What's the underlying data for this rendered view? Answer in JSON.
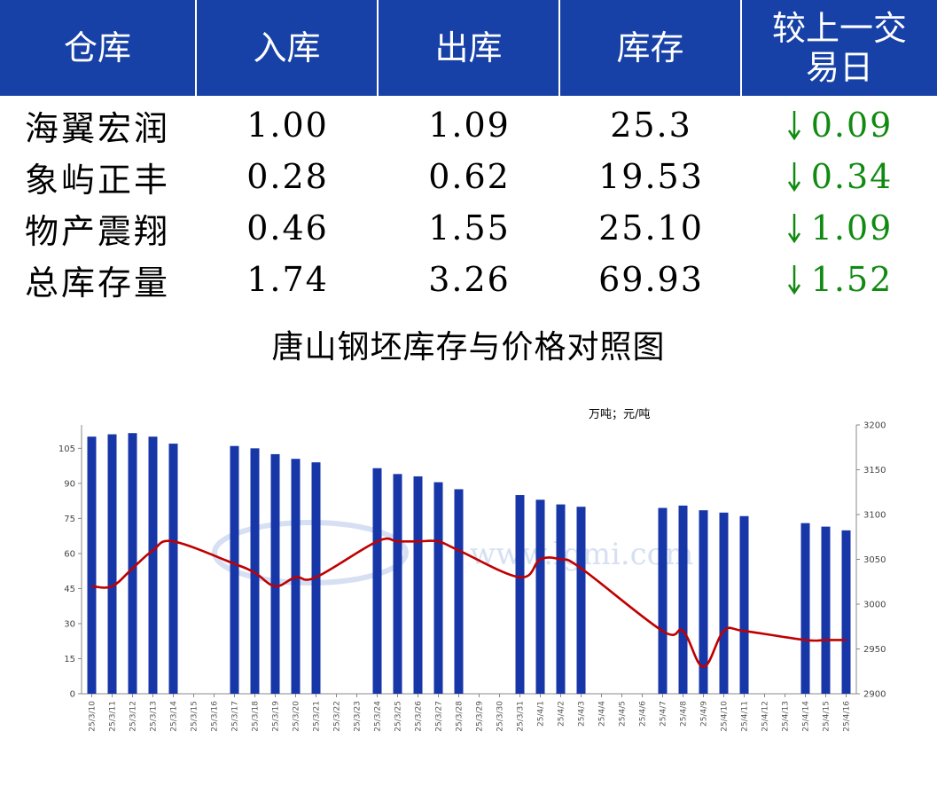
{
  "table": {
    "headers": [
      "仓库",
      "入库",
      "出库",
      "库存",
      "较上一交易日"
    ],
    "header_last_lines": [
      "较上一交",
      "易日"
    ],
    "rows": [
      {
        "name": "海翼宏润",
        "in": "1.00",
        "out": "1.09",
        "stock": "25.3",
        "change": "0.09",
        "dir": "down"
      },
      {
        "name": "象屿正丰",
        "in": "0.28",
        "out": "0.62",
        "stock": "19.53",
        "change": "0.34",
        "dir": "down"
      },
      {
        "name": "物产震翔",
        "in": "0.46",
        "out": "1.55",
        "stock": "25.10",
        "change": "1.09",
        "dir": "down"
      },
      {
        "name": "总库存量",
        "in": "1.74",
        "out": "3.26",
        "stock": "69.93",
        "change": "1.52",
        "dir": "down"
      }
    ]
  },
  "colors": {
    "header_bg": "#1741a6",
    "bar": "#1736a8",
    "line": "#c00000",
    "change": "#118a11"
  },
  "chart_data": {
    "type": "bar",
    "title": "唐山钢坯库存与价格对照图",
    "unit_label": "万吨；元/吨",
    "watermark": "www.lgmi.com",
    "categories": [
      "25/3/10",
      "25/3/11",
      "25/3/12",
      "25/3/13",
      "25/3/14",
      "25/3/15",
      "25/3/16",
      "25/3/17",
      "25/3/18",
      "25/3/19",
      "25/3/20",
      "25/3/21",
      "25/3/22",
      "25/3/23",
      "25/3/24",
      "25/3/25",
      "25/3/26",
      "25/3/27",
      "25/3/28",
      "25/3/29",
      "25/3/30",
      "25/3/31",
      "25/4/1",
      "25/4/2",
      "25/4/3",
      "25/4/4",
      "25/4/5",
      "25/4/6",
      "25/4/7",
      "25/4/8",
      "25/4/9",
      "25/4/10",
      "25/4/11",
      "25/4/12",
      "25/4/13",
      "25/4/14",
      "25/4/15",
      "25/4/16"
    ],
    "series": [
      {
        "type": "bar",
        "axis": "left",
        "values": [
          110,
          111,
          111.5,
          110,
          107,
          null,
          null,
          106,
          105,
          102.5,
          100.5,
          99,
          null,
          null,
          96.5,
          94,
          93,
          90.5,
          87.5,
          null,
          null,
          85,
          83,
          81,
          80,
          null,
          null,
          null,
          79.5,
          80.5,
          78.5,
          77.5,
          76,
          null,
          null,
          73,
          71.5,
          69.9
        ]
      },
      {
        "type": "line",
        "axis": "right",
        "values": [
          3020,
          3020,
          3040,
          3060,
          3070,
          null,
          null,
          3045,
          3035,
          3020,
          3030,
          3030,
          null,
          null,
          3070,
          3070,
          3070,
          3070,
          3060,
          null,
          null,
          3030,
          3050,
          3050,
          3040,
          null,
          null,
          null,
          2970,
          2970,
          2930,
          2970,
          2970,
          null,
          null,
          2960,
          2960,
          2960
        ]
      }
    ],
    "y_left": {
      "min": 0,
      "max": 115,
      "ticks": [
        0,
        15,
        30,
        45,
        60,
        75,
        90,
        105
      ]
    },
    "y_right": {
      "min": 2900,
      "max": 3200,
      "ticks": [
        2900,
        2950,
        3000,
        3050,
        3100,
        3150,
        3200
      ]
    }
  }
}
